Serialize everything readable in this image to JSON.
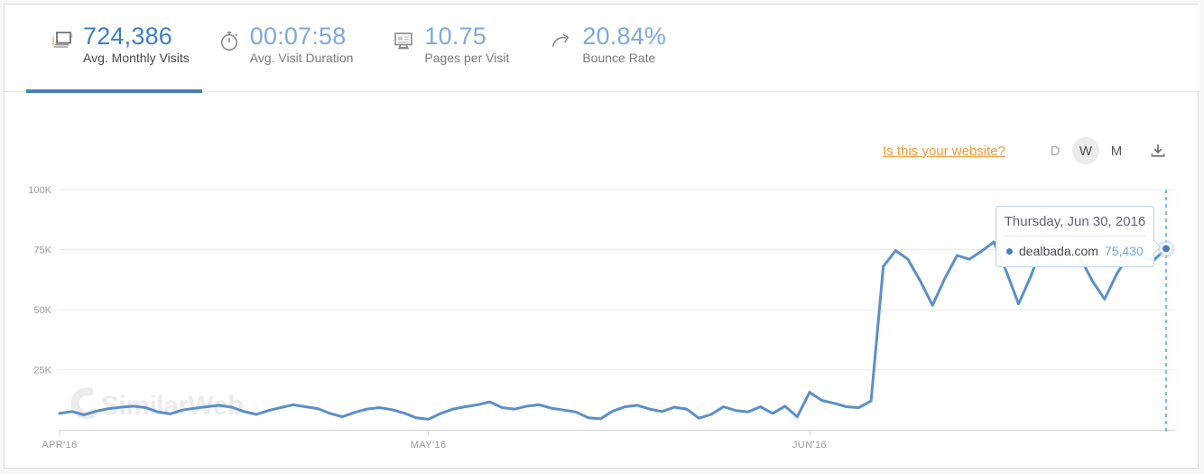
{
  "stats": {
    "items": [
      {
        "value": "724,386",
        "label": "Avg. Monthly Visits",
        "icon": "visits-icon",
        "active": true
      },
      {
        "value": "00:07:58",
        "label": "Avg. Visit Duration",
        "icon": "stopwatch-icon",
        "active": false
      },
      {
        "value": "10.75",
        "label": "Pages per Visit",
        "icon": "pages-icon",
        "active": false
      },
      {
        "value": "20.84%",
        "label": "Bounce Rate",
        "icon": "bounce-arrow-icon",
        "active": false
      }
    ]
  },
  "controls": {
    "website_link": "Is this your website?",
    "granularity": [
      {
        "label": "D",
        "selected": false
      },
      {
        "label": "W",
        "selected": true
      },
      {
        "label": "M",
        "selected": false
      }
    ],
    "download_icon": "download-icon"
  },
  "watermark": "SimilarWeb",
  "tooltip": {
    "title": "Thursday, Jun 30, 2016",
    "site": "dealbada.com",
    "value": "75,430"
  },
  "colors": {
    "accent_blue": "#4a7cb9",
    "stat_value_active": "#3f7ec4",
    "stat_value_inactive": "#7fa9da",
    "link_orange": "#f29b38",
    "line_blue": "#5b8fc7",
    "dashed_indicator": "#3f9ddb",
    "highlight_dot": "#4a7dbd"
  },
  "chart_data": {
    "type": "line",
    "title": "",
    "xlabel": "",
    "ylabel": "",
    "granularity": "daily",
    "x_start_date": "2016-04-01",
    "x_end_date": "2016-06-30",
    "x_ticks": [
      "APR'16",
      "MAY'16",
      "JUN'16"
    ],
    "x_tick_indices": [
      0,
      30,
      61
    ],
    "y_ticks": [
      "25K",
      "50K",
      "75K",
      "100K"
    ],
    "y_grid_values": [
      25000,
      50000,
      75000,
      100000
    ],
    "ylim": [
      0,
      100000
    ],
    "grid": true,
    "legend": "none",
    "series": [
      {
        "name": "dealbada.com",
        "color": "#5b8fc7",
        "values": [
          6800,
          7600,
          6200,
          7800,
          8800,
          9400,
          9800,
          9200,
          7400,
          6600,
          8200,
          9000,
          9600,
          10200,
          9400,
          7600,
          6400,
          8000,
          9200,
          10400,
          9600,
          8800,
          6800,
          5400,
          7200,
          8600,
          9200,
          8400,
          7000,
          5000,
          4400,
          6800,
          8600,
          9600,
          10400,
          11600,
          9200,
          8600,
          9800,
          10400,
          9000,
          8200,
          7400,
          5000,
          4600,
          7800,
          9600,
          10200,
          8600,
          7600,
          9400,
          8600,
          4800,
          6400,
          9600,
          8000,
          7400,
          9600,
          6800,
          9800,
          5400,
          15600,
          12200,
          11000,
          9600,
          9200,
          12000,
          68000,
          74600,
          71000,
          62000,
          51800,
          63000,
          72600,
          71000,
          74400,
          78200,
          66000,
          52400,
          64000,
          77600,
          76000,
          74200,
          71800,
          62000,
          54400,
          65000,
          72800,
          72000,
          70600,
          75430
        ]
      }
    ],
    "highlight": {
      "index": 90,
      "date": "Thursday, Jun 30, 2016",
      "value": 75430
    }
  }
}
